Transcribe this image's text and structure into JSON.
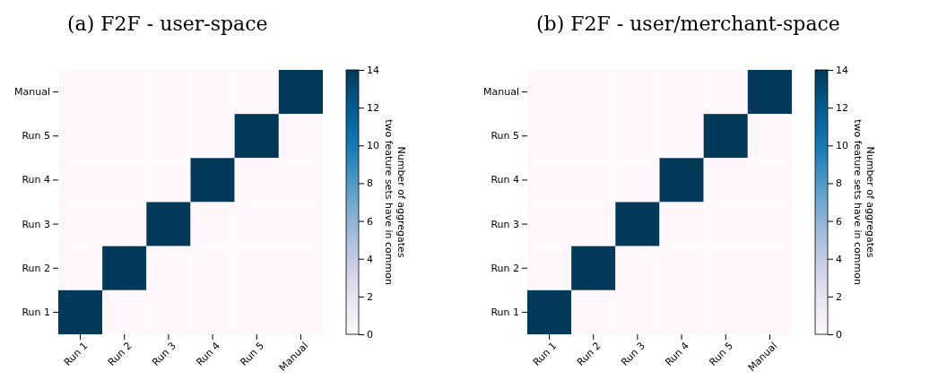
{
  "chart_data": [
    {
      "type": "heatmap",
      "title": "(a) F2F - user-space",
      "categories": [
        "Run 1",
        "Run 2",
        "Run 3",
        "Run 4",
        "Run 5",
        "Manual"
      ],
      "y_categories": [
        "Manual",
        "Run 5",
        "Run 4",
        "Run 3",
        "Run 2",
        "Run 1"
      ],
      "cells": [
        [
          0,
          0,
          0,
          0,
          0,
          14
        ],
        [
          0,
          0,
          0,
          0,
          14,
          0
        ],
        [
          0,
          0,
          0,
          14,
          0,
          0
        ],
        [
          0,
          0,
          14,
          0,
          0,
          0
        ],
        [
          0,
          14,
          0,
          0,
          0,
          0
        ],
        [
          14,
          0,
          0,
          0,
          0,
          0
        ]
      ],
      "clim": [
        0,
        14
      ],
      "cticks": [
        0,
        2,
        4,
        6,
        8,
        10,
        12,
        14
      ],
      "clabel": "Number of aggregates\ntwo feature sets have in common"
    },
    {
      "type": "heatmap",
      "title": "(b) F2F - user/merchant-space",
      "categories": [
        "Run 1",
        "Run 2",
        "Run 3",
        "Run 4",
        "Run 5",
        "Manual"
      ],
      "y_categories": [
        "Manual",
        "Run 5",
        "Run 4",
        "Run 3",
        "Run 2",
        "Run 1"
      ],
      "cells": [
        [
          0,
          0,
          0,
          0,
          0,
          14
        ],
        [
          0,
          0,
          0,
          0,
          14,
          0
        ],
        [
          0,
          0,
          0,
          14,
          0,
          0
        ],
        [
          0,
          0,
          14,
          0,
          0,
          0
        ],
        [
          0,
          14,
          0,
          0,
          0,
          0
        ],
        [
          14,
          0,
          0,
          0,
          0,
          0
        ]
      ],
      "clim": [
        0,
        14
      ],
      "cticks": [
        0,
        2,
        4,
        6,
        8,
        10,
        12,
        14
      ],
      "clabel": "Number of aggregates\ntwo feature sets have in common"
    }
  ]
}
